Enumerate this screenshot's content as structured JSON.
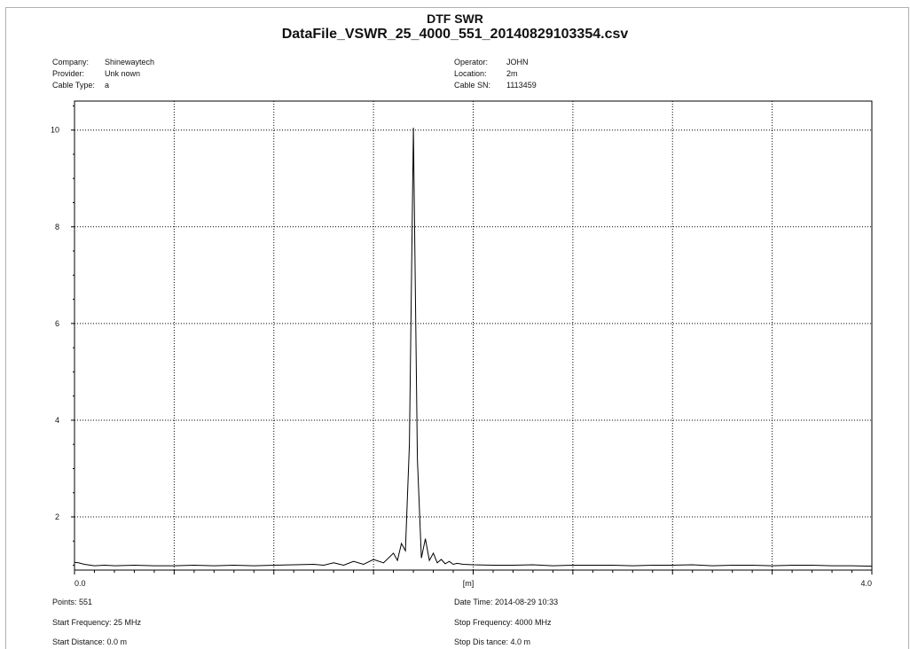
{
  "header": {
    "title": "DTF SWR",
    "subtitle": "DataFile_VSWR_25_4000_551_20140829103354.csv"
  },
  "info": {
    "company_label": "Company:",
    "company_value": "Shinewaytech",
    "provider_label": "Provider:",
    "provider_value": "Unk nown",
    "cable_type_label": "Cable Type:",
    "cable_type_value": "a",
    "operator_label": "Operator:",
    "operator_value": "JOHN",
    "location_label": "Location:",
    "location_value": "2m",
    "cable_sn_label": "Cable SN:",
    "cable_sn_value": "1113459"
  },
  "footer": {
    "points": "Points: 551",
    "start_frequency": "Start Frequency: 25 MHz",
    "start_distance": "Start Distance: 0.0 m",
    "date_time": "Date Time: 2014-08-29 10:33",
    "stop_frequency": "Stop Frequency: 4000 MHz",
    "stop_distance": "Stop Dis tance: 4.0 m"
  },
  "chart_data": {
    "type": "line",
    "title": "DTF SWR",
    "subtitle": "DataFile_VSWR_25_4000_551_20140829103354.csv",
    "xlabel": "[m]",
    "ylabel": "",
    "xlim": [
      0.0,
      4.0
    ],
    "ylim": [
      0.9,
      10.6
    ],
    "grid": true,
    "x_tick_labels": [
      "0.0",
      "4.0"
    ],
    "y_ticks": [
      2,
      4,
      6,
      8,
      10
    ],
    "line_color": "#000000",
    "series": [
      {
        "x": [
          0.0,
          0.02,
          0.05,
          0.1,
          0.15,
          0.2,
          0.3,
          0.4,
          0.5,
          0.6,
          0.7,
          0.8,
          0.9,
          1.0,
          1.1,
          1.2,
          1.25,
          1.3,
          1.35,
          1.4,
          1.45,
          1.5,
          1.55,
          1.6,
          1.62,
          1.64,
          1.66,
          1.68,
          1.7,
          1.72,
          1.74,
          1.76,
          1.78,
          1.8,
          1.82,
          1.84,
          1.86,
          1.88,
          1.9,
          1.92,
          1.95,
          2.0,
          2.1,
          2.2,
          2.3,
          2.4,
          2.5,
          2.6,
          2.7,
          2.8,
          2.9,
          3.0,
          3.1,
          3.2,
          3.3,
          3.4,
          3.5,
          3.6,
          3.7,
          3.8,
          3.9,
          4.0
        ],
        "y": [
          1.06,
          1.05,
          1.02,
          0.99,
          1.0,
          0.99,
          1.0,
          0.99,
          0.99,
          1.0,
          0.99,
          1.0,
          0.99,
          1.0,
          1.01,
          1.02,
          1.0,
          1.05,
          1.0,
          1.08,
          1.02,
          1.12,
          1.05,
          1.25,
          1.1,
          1.45,
          1.3,
          3.5,
          10.05,
          3.2,
          1.15,
          1.55,
          1.1,
          1.25,
          1.05,
          1.12,
          1.03,
          1.08,
          1.02,
          1.04,
          1.02,
          1.01,
          1.0,
          1.0,
          1.01,
          0.99,
          1.0,
          1.0,
          1.0,
          0.99,
          1.0,
          1.0,
          1.01,
          0.99,
          1.0,
          1.0,
          0.99,
          1.0,
          1.0,
          0.99,
          0.99,
          0.98
        ]
      }
    ]
  }
}
